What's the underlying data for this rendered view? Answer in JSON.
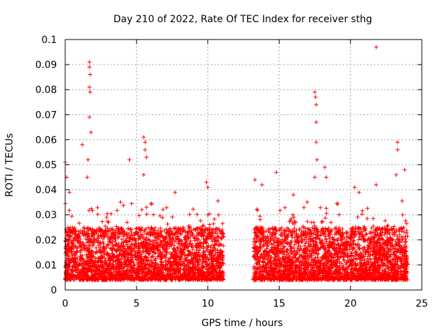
{
  "chart_data": {
    "type": "scatter",
    "title": "Day 210 of 2022, Rate Of TEC Index for receiver sthg",
    "xlabel": "GPS time / hours",
    "ylabel": "ROTI / TECUs",
    "xlim": [
      0,
      25
    ],
    "ylim": [
      0,
      0.1
    ],
    "xticks": [
      0,
      5,
      10,
      15,
      20,
      25
    ],
    "yticks": [
      0,
      0.01,
      0.02,
      0.03,
      0.04,
      0.05,
      0.06,
      0.07,
      0.08,
      0.09,
      0.1
    ],
    "xtick_labels": [
      "0",
      "5",
      "10",
      "15",
      "20",
      "25"
    ],
    "ytick_labels": [
      "0",
      "0.01",
      "0.02",
      "0.03",
      "0.04",
      "0.05",
      "0.06",
      "0.07",
      "0.08",
      "0.09",
      "0.1"
    ],
    "grid": true,
    "marker": "+",
    "color": "#ff0000",
    "series": [
      {
        "name": "ROTI",
        "segments": [
          {
            "x_start": 0,
            "x_end": 11.1
          },
          {
            "x_start": 13.2,
            "x_end": 24
          }
        ],
        "notable_points": [
          {
            "x": 0.0,
            "y": 0.051
          },
          {
            "x": 0.1,
            "y": 0.045
          },
          {
            "x": 0.3,
            "y": 0.039
          },
          {
            "x": 1.2,
            "y": 0.058
          },
          {
            "x": 1.7,
            "y": 0.091
          },
          {
            "x": 1.7,
            "y": 0.089
          },
          {
            "x": 1.75,
            "y": 0.086
          },
          {
            "x": 1.7,
            "y": 0.081
          },
          {
            "x": 1.75,
            "y": 0.079
          },
          {
            "x": 1.7,
            "y": 0.069
          },
          {
            "x": 1.8,
            "y": 0.063
          },
          {
            "x": 1.6,
            "y": 0.052
          },
          {
            "x": 1.55,
            "y": 0.045
          },
          {
            "x": 4.5,
            "y": 0.052
          },
          {
            "x": 5.5,
            "y": 0.061
          },
          {
            "x": 5.6,
            "y": 0.059
          },
          {
            "x": 5.6,
            "y": 0.056
          },
          {
            "x": 5.7,
            "y": 0.053
          },
          {
            "x": 5.5,
            "y": 0.046
          },
          {
            "x": 7.7,
            "y": 0.039
          },
          {
            "x": 9.9,
            "y": 0.043
          },
          {
            "x": 10.0,
            "y": 0.041
          },
          {
            "x": 13.3,
            "y": 0.044
          },
          {
            "x": 13.8,
            "y": 0.042
          },
          {
            "x": 14.8,
            "y": 0.047
          },
          {
            "x": 16.0,
            "y": 0.038
          },
          {
            "x": 17.5,
            "y": 0.079
          },
          {
            "x": 17.55,
            "y": 0.077
          },
          {
            "x": 17.6,
            "y": 0.074
          },
          {
            "x": 17.6,
            "y": 0.067
          },
          {
            "x": 17.6,
            "y": 0.059
          },
          {
            "x": 17.65,
            "y": 0.052
          },
          {
            "x": 17.5,
            "y": 0.045
          },
          {
            "x": 18.2,
            "y": 0.049
          },
          {
            "x": 18.3,
            "y": 0.045
          },
          {
            "x": 20.3,
            "y": 0.041
          },
          {
            "x": 20.6,
            "y": 0.039
          },
          {
            "x": 21.8,
            "y": 0.097
          },
          {
            "x": 21.8,
            "y": 0.042
          },
          {
            "x": 23.3,
            "y": 0.059
          },
          {
            "x": 23.3,
            "y": 0.056
          },
          {
            "x": 23.2,
            "y": 0.046
          },
          {
            "x": 23.8,
            "y": 0.048
          }
        ],
        "bulk_range": [
          0.004,
          0.025
        ]
      }
    ]
  }
}
